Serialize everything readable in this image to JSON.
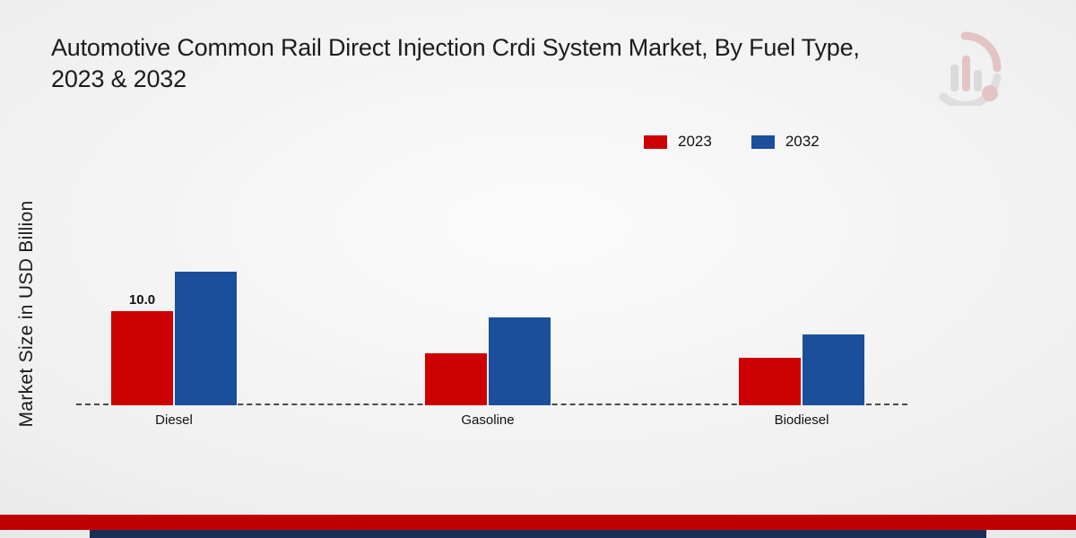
{
  "title": "Automotive Common Rail Direct Injection Crdi System Market, By Fuel Type, 2023 & 2032",
  "ylabel": "Market Size in USD Billion",
  "legend": {
    "items": [
      {
        "label": "2023",
        "color": "#cc0001"
      },
      {
        "label": "2032",
        "color": "#1b4f9c"
      }
    ]
  },
  "chart_data": {
    "type": "bar",
    "title": "Automotive Common Rail Direct Injection Crdi System Market, By Fuel Type, 2023 & 2032",
    "categories": [
      "Diesel",
      "Gasoline",
      "Biodiesel"
    ],
    "series": [
      {
        "name": "2023",
        "color": "#cc0001",
        "values": [
          10.0,
          5.5,
          5.0
        ]
      },
      {
        "name": "2032",
        "color": "#1b4f9c",
        "values": [
          14.2,
          9.3,
          7.5
        ]
      }
    ],
    "bar_label": {
      "category": "Diesel",
      "series": "2023",
      "text": "10.0"
    },
    "xlabel": "",
    "ylabel": "Market Size in USD Billion",
    "ylim": [
      0,
      16
    ],
    "grid": false,
    "legend_position": "top-right",
    "baseline_style": "dashed"
  },
  "footer": {
    "red_color": "#c00000",
    "navy_color": "#1b2f55"
  },
  "logo_color": "#d99a9a"
}
